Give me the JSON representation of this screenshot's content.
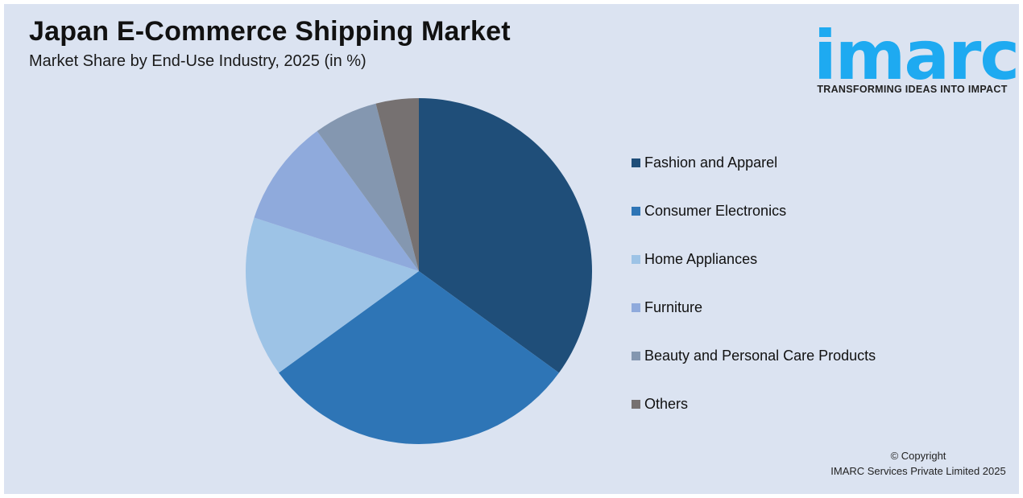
{
  "header": {
    "title": "Japan E-Commerce Shipping Market",
    "subtitle": "Market Share by End-Use Industry, 2025 (in %)"
  },
  "logo": {
    "word": "imarc",
    "tagline": "TRANSFORMING IDEAS INTO IMPACT",
    "color": "#1eaaf1"
  },
  "footer": {
    "line1": "© Copyright",
    "line2": "IMARC Services Private Limited 2025"
  },
  "chart_data": {
    "type": "pie",
    "title": "Japan E-Commerce Shipping Market",
    "subtitle": "Market Share by End-Use Industry, 2025 (in %)",
    "start_angle_deg": 0,
    "direction": "clockwise",
    "legend_position": "right",
    "categories": [
      "Fashion and Apparel",
      "Consumer Electronics",
      "Home Appliances",
      "Furniture",
      "Beauty and Personal Care Products",
      "Others"
    ],
    "values": [
      35,
      30,
      15,
      10,
      6,
      4
    ],
    "colors": [
      "#1f4e79",
      "#2e75b6",
      "#9dc3e6",
      "#8faadc",
      "#8497b0",
      "#767171"
    ]
  }
}
